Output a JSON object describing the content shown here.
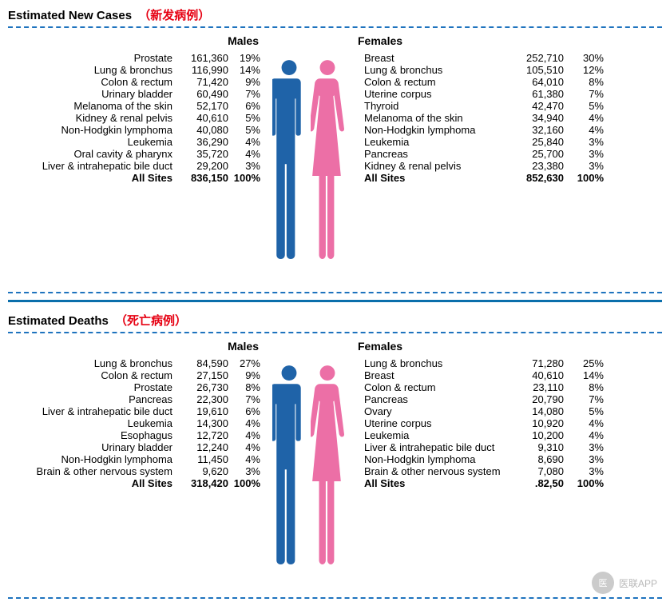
{
  "colors": {
    "male": "#1f63a8",
    "female": "#ec6fa6",
    "dashed": "#1e73be",
    "divider": "#0b6fab",
    "accent_red": "#e60012"
  },
  "sections": [
    {
      "title_en": "Estimated New Cases",
      "title_cn": "（新发病例）",
      "header_male": "Males",
      "header_female": "Females",
      "males": [
        {
          "label": "Prostate",
          "n": "161,360",
          "pct": "19%"
        },
        {
          "label": "Lung & bronchus",
          "n": "116,990",
          "pct": "14%"
        },
        {
          "label": "Colon & rectum",
          "n": "71,420",
          "pct": "9%"
        },
        {
          "label": "Urinary bladder",
          "n": "60,490",
          "pct": "7%"
        },
        {
          "label": "Melanoma of the skin",
          "n": "52,170",
          "pct": "6%"
        },
        {
          "label": "Kidney & renal pelvis",
          "n": "40,610",
          "pct": "5%"
        },
        {
          "label": "Non-Hodgkin lymphoma",
          "n": "40,080",
          "pct": "5%"
        },
        {
          "label": "Leukemia",
          "n": "36,290",
          "pct": "4%"
        },
        {
          "label": "Oral cavity & pharynx",
          "n": "35,720",
          "pct": "4%"
        },
        {
          "label": "Liver & intrahepatic bile duct",
          "n": "29,200",
          "pct": "3%"
        }
      ],
      "females": [
        {
          "label": "Breast",
          "n": "252,710",
          "pct": "30%"
        },
        {
          "label": "Lung & bronchus",
          "n": "105,510",
          "pct": "12%"
        },
        {
          "label": "Colon & rectum",
          "n": "64,010",
          "pct": "8%"
        },
        {
          "label": "Uterine corpus",
          "n": "61,380",
          "pct": "7%"
        },
        {
          "label": "Thyroid",
          "n": "42,470",
          "pct": "5%"
        },
        {
          "label": "Melanoma of the skin",
          "n": "34,940",
          "pct": "4%"
        },
        {
          "label": "Non-Hodgkin lymphoma",
          "n": "32,160",
          "pct": "4%"
        },
        {
          "label": "Leukemia",
          "n": "25,840",
          "pct": "3%"
        },
        {
          "label": "Pancreas",
          "n": "25,700",
          "pct": "3%"
        },
        {
          "label": "Kidney & renal pelvis",
          "n": "23,380",
          "pct": "3%"
        }
      ],
      "total_label": "All Sites",
      "total_male_n": "836,150",
      "total_male_pct": "100%",
      "total_female_n": "852,630",
      "total_female_pct": "100%"
    },
    {
      "title_en": "Estimated Deaths",
      "title_cn": "（死亡病例）",
      "header_male": "Males",
      "header_female": "Females",
      "males": [
        {
          "label": "Lung & bronchus",
          "n": "84,590",
          "pct": "27%"
        },
        {
          "label": "Colon & rectum",
          "n": "27,150",
          "pct": "9%"
        },
        {
          "label": "Prostate",
          "n": "26,730",
          "pct": "8%"
        },
        {
          "label": "Pancreas",
          "n": "22,300",
          "pct": "7%"
        },
        {
          "label": "Liver & intrahepatic bile duct",
          "n": "19,610",
          "pct": "6%"
        },
        {
          "label": "Leukemia",
          "n": "14,300",
          "pct": "4%"
        },
        {
          "label": "Esophagus",
          "n": "12,720",
          "pct": "4%"
        },
        {
          "label": "Urinary bladder",
          "n": "12,240",
          "pct": "4%"
        },
        {
          "label": "Non-Hodgkin lymphoma",
          "n": "11,450",
          "pct": "4%"
        },
        {
          "label": "Brain & other nervous system",
          "n": "9,620",
          "pct": "3%"
        }
      ],
      "females": [
        {
          "label": "Lung & bronchus",
          "n": "71,280",
          "pct": "25%"
        },
        {
          "label": "Breast",
          "n": "40,610",
          "pct": "14%"
        },
        {
          "label": "Colon & rectum",
          "n": "23,110",
          "pct": "8%"
        },
        {
          "label": "Pancreas",
          "n": "20,790",
          "pct": "7%"
        },
        {
          "label": "Ovary",
          "n": "14,080",
          "pct": "5%"
        },
        {
          "label": "Uterine corpus",
          "n": "10,920",
          "pct": "4%"
        },
        {
          "label": "Leukemia",
          "n": "10,200",
          "pct": "4%"
        },
        {
          "label": "Liver & intrahepatic bile duct",
          "n": "9,310",
          "pct": "3%"
        },
        {
          "label": "Non-Hodgkin lymphoma",
          "n": "8,690",
          "pct": "3%"
        },
        {
          "label": "Brain & other nervous system",
          "n": "7,080",
          "pct": "3%"
        }
      ],
      "total_label": "All Sites",
      "total_male_n": "318,420",
      "total_male_pct": "100%",
      "total_female_n": ".82,5⁠0",
      "total_female_pct": "100%"
    }
  ],
  "watermark": {
    "circle": "医",
    "text": "医联APP"
  }
}
